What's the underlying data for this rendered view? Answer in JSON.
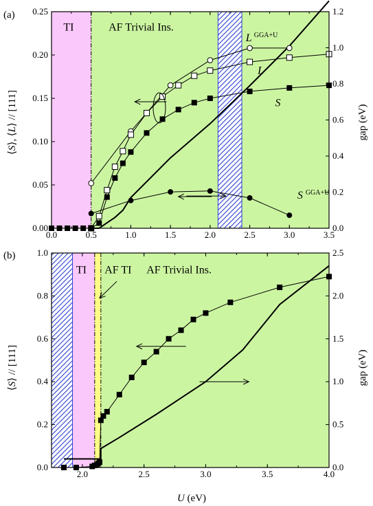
{
  "chart_data": [
    {
      "type": "line",
      "panel_label": "(a)",
      "xlim": [
        0.0,
        3.5
      ],
      "ylim": [
        0.0,
        0.25
      ],
      "y2lim": [
        0.0,
        1.2
      ],
      "x_ticks": [
        "0.0",
        "0.5",
        "1.0",
        "1.5",
        "2.0",
        "2.5",
        "3.0",
        "3.5"
      ],
      "y_ticks": [
        "0.00",
        "0.05",
        "0.10",
        "0.15",
        "0.20",
        "0.25"
      ],
      "y2_ticks": [
        "0.0",
        "0.2",
        "0.4",
        "0.6",
        "0.8",
        "1.0",
        "1.2"
      ],
      "ylabel_parts": [
        "⟨",
        "S",
        "⟩, ⟨",
        "L",
        "⟩ // [111]"
      ],
      "y2label": "gap (eV)",
      "regions": [
        {
          "label": "TI",
          "from": 0.0,
          "to": 0.5,
          "color": "#fbc8fb"
        },
        {
          "label": "AF Trivial Ins.",
          "from": 0.5,
          "to": 3.5,
          "color": "#ccf5a2"
        }
      ],
      "hatched_band": {
        "from": 2.1,
        "to": 2.4,
        "color": "#2a3fd0"
      },
      "boundary_x": 0.5,
      "series": [
        {
          "name": "L",
          "sup": "GGA+U",
          "marker": "circle-open",
          "x": [
            0.5,
            1.0,
            1.5,
            2.0,
            2.5,
            3.0
          ],
          "y": [
            0.052,
            0.112,
            0.165,
            0.194,
            0.208,
            0.208
          ]
        },
        {
          "name": "L",
          "marker": "square-open",
          "x": [
            0.5,
            0.6,
            0.7,
            0.8,
            0.9,
            1.0,
            1.2,
            1.4,
            1.6,
            1.8,
            2.0,
            2.5,
            3.0,
            3.5
          ],
          "y": [
            0.0,
            0.014,
            0.044,
            0.071,
            0.089,
            0.108,
            0.133,
            0.152,
            0.165,
            0.176,
            0.182,
            0.192,
            0.197,
            0.201
          ]
        },
        {
          "name": "S",
          "marker": "square-filled",
          "x": [
            0.0,
            0.1,
            0.2,
            0.3,
            0.4,
            0.5,
            0.6,
            0.7,
            0.8,
            0.9,
            1.0,
            1.2,
            1.4,
            1.6,
            1.8,
            2.0,
            2.5,
            3.0,
            3.5
          ],
          "y": [
            0.0,
            0.0,
            0.0,
            0.0,
            0.0,
            0.0,
            0.006,
            0.036,
            0.058,
            0.075,
            0.088,
            0.11,
            0.126,
            0.137,
            0.145,
            0.15,
            0.158,
            0.162,
            0.165
          ]
        },
        {
          "name": "S",
          "sup": "GGA+U",
          "marker": "circle-filled",
          "x": [
            0.5,
            1.0,
            1.5,
            2.0,
            2.5,
            3.0
          ],
          "y": [
            0.017,
            0.032,
            0.042,
            0.043,
            0.035,
            0.015
          ]
        },
        {
          "name": "gap",
          "marker": "none",
          "axis": "right",
          "x": [
            0.5,
            0.6,
            0.7,
            0.8,
            0.9,
            1.0,
            1.5,
            2.0,
            2.5,
            3.0,
            3.5
          ],
          "y": [
            0.0,
            0.0,
            0.03,
            0.06,
            0.1,
            0.17,
            0.39,
            0.58,
            0.79,
            1.01,
            1.26
          ]
        }
      ],
      "annotations": [
        {
          "text": "TI",
          "at": [
            0.15,
            0.228
          ]
        },
        {
          "text": "AF Trivial Ins.",
          "at": [
            0.72,
            0.228
          ]
        },
        {
          "italic": "L",
          "sup": "GGA+U",
          "at": [
            2.45,
            0.216
          ]
        },
        {
          "italic": "L",
          "at": [
            2.6,
            0.178
          ]
        },
        {
          "italic": "S",
          "at": [
            2.82,
            0.141
          ]
        },
        {
          "italic": "S",
          "sup": "GGA+U",
          "at": [
            3.1,
            0.034
          ]
        }
      ],
      "arrows": [
        {
          "from": [
            1.45,
            0.146
          ],
          "to": [
            1.05,
            0.146
          ],
          "dir": "left"
        },
        {
          "from": [
            1.7,
            0.0372
          ],
          "to": [
            2.2,
            0.0372
          ],
          "dir": "right"
        },
        {
          "from": [
            2.02,
            0.0365
          ],
          "to": [
            1.6,
            0.0365
          ],
          "dir": "left"
        }
      ]
    },
    {
      "type": "line",
      "panel_label": "(b)",
      "xlim": [
        1.75,
        4.0
      ],
      "ylim": [
        0.0,
        1.0
      ],
      "y2lim": [
        0.0,
        2.5
      ],
      "x_ticks": [
        "2.0",
        "2.5",
        "3.0",
        "3.5",
        "4.0"
      ],
      "y_ticks": [
        "0.0",
        "0.2",
        "0.4",
        "0.6",
        "0.8",
        "1.0"
      ],
      "y2_ticks": [
        "0.0",
        "0.5",
        "1.0",
        "1.5",
        "2.0",
        "2.5"
      ],
      "ylabel_parts": [
        "⟨",
        "S",
        "⟩ // [111]"
      ],
      "y2label": "gap (eV)",
      "xlabel_parts": [
        "U",
        " (eV)"
      ],
      "regions": [
        {
          "label": "TI",
          "from": 1.75,
          "to": 2.1,
          "color": "#fbc8fb"
        },
        {
          "label": "AF TI",
          "from": 2.1,
          "to": 2.15,
          "color": "#ffff88"
        },
        {
          "label": "AF Trivial Ins.",
          "from": 2.15,
          "to": 4.0,
          "color": "#ccf5a2"
        }
      ],
      "hatched_band": {
        "from": 1.75,
        "to": 1.92,
        "color": "#2a3fd0"
      },
      "boundary_x": 2.1,
      "boundary_x2": 2.15,
      "series": [
        {
          "name": "S",
          "marker": "square-filled",
          "x": [
            1.85,
            1.95,
            2.08,
            2.1,
            2.12,
            2.13,
            2.14,
            2.15,
            2.17,
            2.2,
            2.3,
            2.4,
            2.5,
            2.6,
            2.7,
            2.8,
            2.9,
            3.0,
            3.2,
            3.6,
            4.0
          ],
          "y": [
            0.0,
            0.0,
            0.005,
            0.01,
            0.014,
            0.02,
            0.025,
            0.22,
            0.24,
            0.26,
            0.34,
            0.42,
            0.49,
            0.54,
            0.6,
            0.64,
            0.69,
            0.72,
            0.77,
            0.84,
            0.89
          ]
        },
        {
          "name": "gap",
          "marker": "none",
          "axis": "right",
          "x": [
            1.85,
            2.1,
            2.15,
            2.15,
            2.3,
            2.6,
            3.0,
            3.3,
            3.6,
            4.0
          ],
          "y": [
            0.1,
            0.1,
            0.1,
            0.22,
            0.35,
            0.62,
            1.0,
            1.37,
            1.9,
            2.35
          ]
        }
      ],
      "annotations": [
        {
          "text": "TI",
          "at": [
            1.95,
            0.905
          ]
        },
        {
          "text": "AF TI",
          "at": [
            2.18,
            0.905
          ]
        },
        {
          "text": "AF Trivial Ins.",
          "at": [
            2.52,
            0.905
          ]
        }
      ],
      "arrows": [
        {
          "from": [
            2.28,
            0.868
          ],
          "to": [
            2.14,
            0.79
          ],
          "dir": "down-left"
        },
        {
          "from": [
            2.84,
            0.565
          ],
          "to": [
            2.44,
            0.565
          ],
          "dir": "left"
        },
        {
          "from": [
            2.95,
            1.0
          ],
          "to": [
            3.35,
            1.0
          ],
          "dir": "right",
          "axis": "right"
        }
      ]
    }
  ]
}
